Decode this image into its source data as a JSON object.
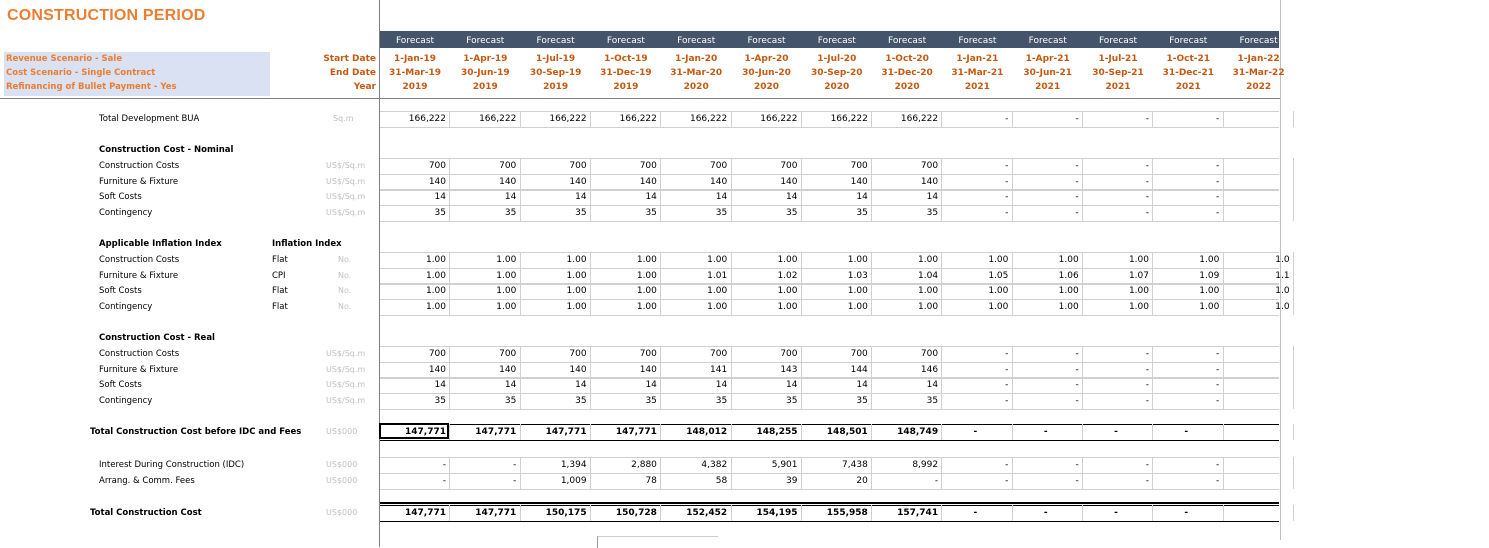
{
  "sheet": {
    "title": "CONSTRUCTION PERIOD",
    "scenarios": [
      "Revenue Scenario - Sale",
      "Cost Scenario - Single Contract",
      "Refinancing of Bullet Payment - Yes"
    ],
    "header_labels": {
      "start": "Start Date",
      "end": "End Date",
      "year": "Year"
    },
    "columns": [
      {
        "type": "Forecast",
        "start": "1-Jan-19",
        "end": "31-Mar-19",
        "year": "2019"
      },
      {
        "type": "Forecast",
        "start": "1-Apr-19",
        "end": "30-Jun-19",
        "year": "2019"
      },
      {
        "type": "Forecast",
        "start": "1-Jul-19",
        "end": "30-Sep-19",
        "year": "2019"
      },
      {
        "type": "Forecast",
        "start": "1-Oct-19",
        "end": "31-Dec-19",
        "year": "2019"
      },
      {
        "type": "Forecast",
        "start": "1-Jan-20",
        "end": "31-Mar-20",
        "year": "2020"
      },
      {
        "type": "Forecast",
        "start": "1-Apr-20",
        "end": "30-Jun-20",
        "year": "2020"
      },
      {
        "type": "Forecast",
        "start": "1-Jul-20",
        "end": "30-Sep-20",
        "year": "2020"
      },
      {
        "type": "Forecast",
        "start": "1-Oct-20",
        "end": "31-Dec-20",
        "year": "2020"
      },
      {
        "type": "Forecast",
        "start": "1-Jan-21",
        "end": "31-Mar-21",
        "year": "2021"
      },
      {
        "type": "Forecast",
        "start": "1-Apr-21",
        "end": "30-Jun-21",
        "year": "2021"
      },
      {
        "type": "Forecast",
        "start": "1-Jul-21",
        "end": "30-Sep-21",
        "year": "2021"
      },
      {
        "type": "Forecast",
        "start": "1-Oct-21",
        "end": "31-Dec-21",
        "year": "2021"
      },
      {
        "type": "Forecast",
        "start": "1-Jan-22",
        "end": "31-Mar-22",
        "year": "2022"
      }
    ],
    "section_headers": {
      "nominal": "Construction Cost - Nominal",
      "inflation": "Applicable Inflation Index",
      "inflation_col": "Inflation Index",
      "real": "Construction Cost - Real"
    },
    "rows": {
      "bua": {
        "label": "Total Development BUA",
        "unit": "Sq.m",
        "values": [
          "166,222",
          "166,222",
          "166,222",
          "166,222",
          "166,222",
          "166,222",
          "166,222",
          "166,222",
          "-",
          "-",
          "-",
          "-",
          ""
        ]
      },
      "nominal": [
        {
          "label": "Construction Costs",
          "unit": "US$/Sq.m",
          "values": [
            "700",
            "700",
            "700",
            "700",
            "700",
            "700",
            "700",
            "700",
            "-",
            "-",
            "-",
            "-",
            ""
          ]
        },
        {
          "label": "Furniture & Fixture",
          "unit": "US$/Sq.m",
          "values": [
            "140",
            "140",
            "140",
            "140",
            "140",
            "140",
            "140",
            "140",
            "-",
            "-",
            "-",
            "-",
            ""
          ]
        },
        {
          "label": "Soft Costs",
          "unit": "US$/Sq.m",
          "values": [
            "14",
            "14",
            "14",
            "14",
            "14",
            "14",
            "14",
            "14",
            "-",
            "-",
            "-",
            "-",
            ""
          ]
        },
        {
          "label": "Contingency",
          "unit": "US$/Sq.m",
          "values": [
            "35",
            "35",
            "35",
            "35",
            "35",
            "35",
            "35",
            "35",
            "-",
            "-",
            "-",
            "-",
            ""
          ]
        }
      ],
      "inflation": [
        {
          "label": "Construction Costs",
          "index": "Flat",
          "unit": "No.",
          "values": [
            "1.00",
            "1.00",
            "1.00",
            "1.00",
            "1.00",
            "1.00",
            "1.00",
            "1.00",
            "1.00",
            "1.00",
            "1.00",
            "1.00",
            "1.0"
          ]
        },
        {
          "label": "Furniture & Fixture",
          "index": "CPI",
          "unit": "No.",
          "values": [
            "1.00",
            "1.00",
            "1.00",
            "1.00",
            "1.01",
            "1.02",
            "1.03",
            "1.04",
            "1.05",
            "1.06",
            "1.07",
            "1.09",
            "1.1"
          ]
        },
        {
          "label": "Soft Costs",
          "index": "Flat",
          "unit": "No.",
          "values": [
            "1.00",
            "1.00",
            "1.00",
            "1.00",
            "1.00",
            "1.00",
            "1.00",
            "1.00",
            "1.00",
            "1.00",
            "1.00",
            "1.00",
            "1.0"
          ]
        },
        {
          "label": "Contingency",
          "index": "Flat",
          "unit": "No.",
          "values": [
            "1.00",
            "1.00",
            "1.00",
            "1.00",
            "1.00",
            "1.00",
            "1.00",
            "1.00",
            "1.00",
            "1.00",
            "1.00",
            "1.00",
            "1.0"
          ]
        }
      ],
      "real": [
        {
          "label": "Construction Costs",
          "unit": "US$/Sq.m",
          "values": [
            "700",
            "700",
            "700",
            "700",
            "700",
            "700",
            "700",
            "700",
            "-",
            "-",
            "-",
            "-",
            ""
          ]
        },
        {
          "label": "Furniture & Fixture",
          "unit": "US$/Sq.m",
          "values": [
            "140",
            "140",
            "140",
            "140",
            "141",
            "143",
            "144",
            "146",
            "-",
            "-",
            "-",
            "-",
            ""
          ]
        },
        {
          "label": "Soft Costs",
          "unit": "US$/Sq.m",
          "values": [
            "14",
            "14",
            "14",
            "14",
            "14",
            "14",
            "14",
            "14",
            "-",
            "-",
            "-",
            "-",
            ""
          ]
        },
        {
          "label": "Contingency",
          "unit": "US$/Sq.m",
          "values": [
            "35",
            "35",
            "35",
            "35",
            "35",
            "35",
            "35",
            "35",
            "-",
            "-",
            "-",
            "-",
            ""
          ]
        }
      ],
      "total_before": {
        "label": "Total Construction Cost before IDC and Fees",
        "unit": "US$000",
        "values": [
          "147,771",
          "147,771",
          "147,771",
          "147,771",
          "148,012",
          "148,255",
          "148,501",
          "148,749",
          "-",
          "-",
          "-",
          "-",
          ""
        ]
      },
      "idc": {
        "label": "Interest During Construction (IDC)",
        "unit": "US$000",
        "values": [
          "-",
          "-",
          "1,394",
          "2,880",
          "4,382",
          "5,901",
          "7,438",
          "8,992",
          "-",
          "-",
          "-",
          "-",
          ""
        ]
      },
      "fees": {
        "label": "Arrang. & Comm. Fees",
        "unit": "US$000",
        "values": [
          "-",
          "-",
          "1,009",
          "78",
          "58",
          "39",
          "20",
          "-",
          "-",
          "-",
          "-",
          "-",
          ""
        ]
      },
      "total": {
        "label": "Total Construction Cost",
        "unit": "US$000",
        "values": [
          "147,771",
          "147,771",
          "150,175",
          "150,728",
          "152,452",
          "154,195",
          "155,958",
          "157,741",
          "-",
          "-",
          "-",
          "-",
          ""
        ]
      }
    }
  }
}
